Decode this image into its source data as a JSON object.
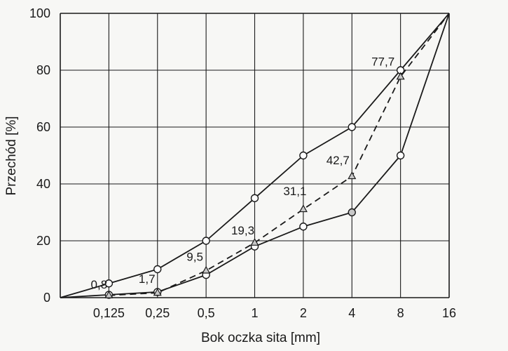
{
  "chart_data": {
    "type": "line",
    "xlabel": "Bok oczka sita [mm]",
    "ylabel": "Przechód [%]",
    "x_categories": [
      "0,125",
      "0,25",
      "0,5",
      "1",
      "2",
      "4",
      "8",
      "16"
    ],
    "x_scale": "log2",
    "ylim": [
      0,
      100
    ],
    "y_ticks": [
      "0",
      "20",
      "40",
      "60",
      "80",
      "100"
    ],
    "grid": true,
    "series": [
      {
        "style": "solid",
        "marker": "circle",
        "points": [
          [
            0.0625,
            0
          ],
          [
            0.125,
            5
          ],
          [
            0.25,
            10
          ],
          [
            0.5,
            20
          ],
          [
            1,
            35
          ],
          [
            2,
            50
          ],
          [
            4,
            60
          ],
          [
            8,
            80
          ],
          [
            16,
            100
          ]
        ]
      },
      {
        "style": "solid",
        "marker": "circle",
        "points": [
          [
            0.0625,
            0
          ],
          [
            0.125,
            1
          ],
          [
            0.25,
            2
          ],
          [
            0.5,
            8
          ],
          [
            1,
            18
          ],
          [
            2,
            25
          ],
          [
            4,
            30
          ],
          [
            8,
            50
          ],
          [
            16,
            100
          ]
        ]
      },
      {
        "style": "dashed",
        "marker": "triangle",
        "points": [
          [
            0.125,
            0.8
          ],
          [
            0.25,
            1.7
          ],
          [
            0.5,
            9.5
          ],
          [
            1,
            19.3
          ],
          [
            2,
            31.1
          ],
          [
            4,
            42.7
          ],
          [
            8,
            77.7
          ],
          [
            16,
            100
          ]
        ]
      }
    ],
    "data_labels": [
      "0,8",
      "1,7",
      "9,5",
      "19,3",
      "31,1",
      "42,7",
      "77,7"
    ]
  },
  "colors": {
    "ink": "#1a1a1a",
    "background": "#f7f7f5",
    "marker_fill": "#ffffff",
    "triangle_fill": "#c8c8c8"
  }
}
